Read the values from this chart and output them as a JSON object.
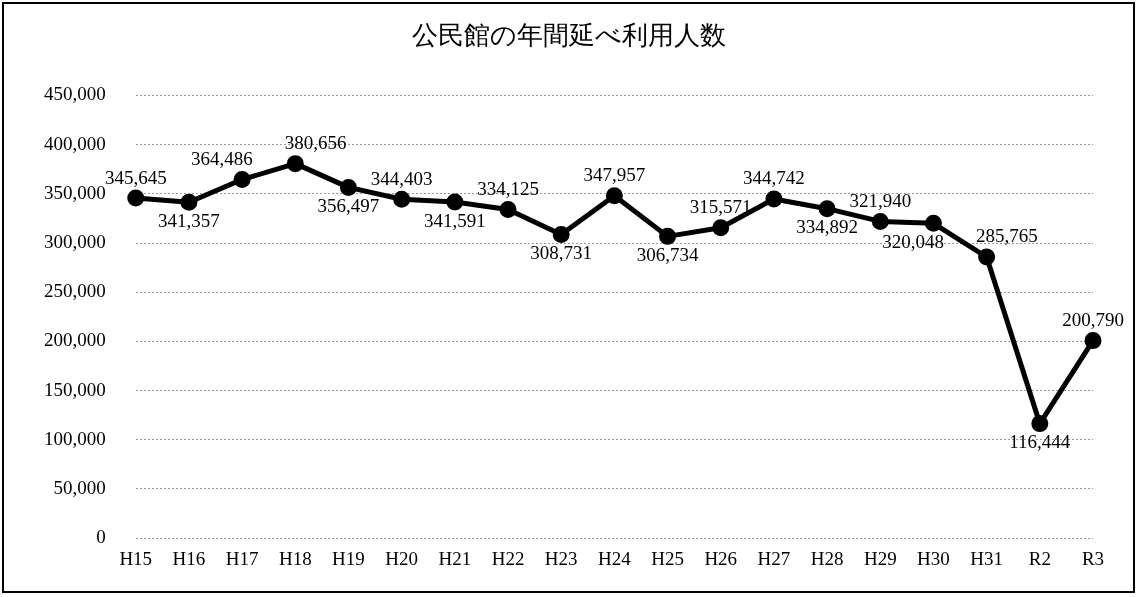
{
  "chart_data": {
    "type": "line",
    "title": "公民館の年間延べ利用人数",
    "categories": [
      "H15",
      "H16",
      "H17",
      "H18",
      "H19",
      "H20",
      "H21",
      "H22",
      "H23",
      "H24",
      "H25",
      "H26",
      "H27",
      "H28",
      "H29",
      "H30",
      "H31",
      "R2",
      "R3"
    ],
    "values": [
      345645,
      341357,
      364486,
      380656,
      356497,
      344403,
      341591,
      334125,
      308731,
      347957,
      306734,
      315571,
      344742,
      334892,
      321940,
      320048,
      285765,
      116444,
      200790
    ],
    "value_labels": [
      "345,645",
      "341,357",
      "364,486",
      "380,656",
      "356,497",
      "344,403",
      "341,591",
      "334,125",
      "308,731",
      "347,957",
      "306,734",
      "315,571",
      "344,742",
      "334,892",
      "321,940",
      "320,048",
      "285,765",
      "116,444",
      "200,790"
    ],
    "color": "#000000",
    "ylim": [
      0,
      450000
    ],
    "yticks": [
      0,
      {
        "value": 50000,
        "label": "50,000"
      },
      {
        "value": 100000,
        "label": "100,000"
      },
      {
        "value": 150000,
        "label": "150,000"
      },
      {
        "value": 200000,
        "label": "200,000"
      },
      {
        "value": 250000,
        "label": "250,000"
      },
      {
        "value": 300000,
        "label": "300,000"
      },
      {
        "value": 350000,
        "label": "350,000"
      },
      {
        "value": 400000,
        "label": "400,000"
      },
      {
        "value": 450000,
        "label": "450,000"
      }
    ],
    "grid": "y",
    "legend": false,
    "marker": "circle",
    "line_style": "solid"
  }
}
